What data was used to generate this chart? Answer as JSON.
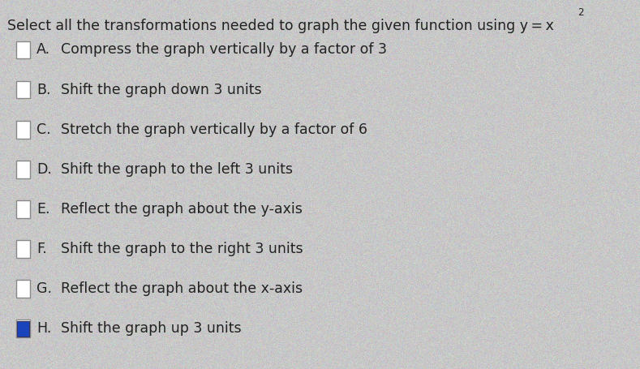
{
  "background_color": "#c8c8c8",
  "title_main": "Select all the transformations needed to graph the given function using y = x",
  "title_sup": "2",
  "options": [
    {
      "label": "A.",
      "text": "Compress the graph vertically by a factor of 3",
      "checked": false
    },
    {
      "label": "B.",
      "text": "Shift the graph down 3 units",
      "checked": false
    },
    {
      "label": "C.",
      "text": "Stretch the graph vertically by a factor of 6",
      "checked": false
    },
    {
      "label": "D.",
      "text": "Shift the graph to the left 3 units",
      "checked": false
    },
    {
      "label": "E.",
      "text": "Reflect the graph about the y-axis",
      "checked": false
    },
    {
      "label": "F.",
      "text": "Shift the graph to the right 3 units",
      "checked": false
    },
    {
      "label": "G.",
      "text": "Reflect the graph about the x-axis",
      "checked": false
    },
    {
      "label": "H.",
      "text": "Shift the graph up 3 units",
      "checked": true
    }
  ],
  "checkbox_color_checked": "#1a44bb",
  "checkbox_border_unchecked": "#888888",
  "checkbox_border_checked": "#333366",
  "text_color": "#222222",
  "title_fontsize": 12.5,
  "option_fontsize": 12.5,
  "sup_fontsize": 8.5
}
